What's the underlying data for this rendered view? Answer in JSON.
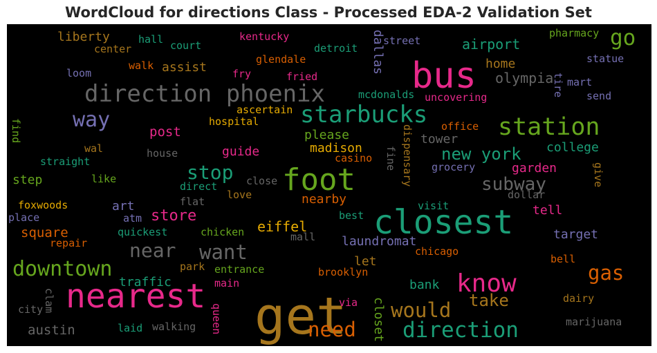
{
  "chart_data": {
    "type": "wordcloud",
    "title": "WordCloud for directions Class - Processed EDA-2 Validation Set",
    "background": "#000000",
    "words": [
      {
        "text": "get",
        "color": "#a6761d"
      },
      {
        "text": "nearest",
        "color": "#e7298a"
      },
      {
        "text": "bus",
        "color": "#e7298a"
      },
      {
        "text": "closest",
        "color": "#1b9e77"
      },
      {
        "text": "foot",
        "color": "#66a61e"
      },
      {
        "text": "direction phoenix",
        "color": "#666666"
      },
      {
        "text": "starbucks",
        "color": "#1b9e77"
      },
      {
        "text": "station",
        "color": "#66a61e"
      },
      {
        "text": "know",
        "color": "#e7298a"
      },
      {
        "text": "downtown",
        "color": "#66a61e"
      },
      {
        "text": "direction",
        "color": "#1b9e77"
      },
      {
        "text": "need",
        "color": "#d95f02"
      },
      {
        "text": "would",
        "color": "#a6761d"
      },
      {
        "text": "want",
        "color": "#666666"
      },
      {
        "text": "near",
        "color": "#666666"
      },
      {
        "text": "way",
        "color": "#7570b3"
      },
      {
        "text": "stop",
        "color": "#1b9e77"
      },
      {
        "text": "go",
        "color": "#66a61e"
      },
      {
        "text": "gas",
        "color": "#d95f02"
      },
      {
        "text": "subway",
        "color": "#666666"
      },
      {
        "text": "new york",
        "color": "#1b9e77"
      },
      {
        "text": "take",
        "color": "#a6761d"
      },
      {
        "text": "store",
        "color": "#e7298a"
      },
      {
        "text": "airport",
        "color": "#1b9e77"
      },
      {
        "text": "olympia",
        "color": "#666666"
      },
      {
        "text": "home",
        "color": "#a6761d"
      },
      {
        "text": "liberty",
        "color": "#a6761d"
      },
      {
        "text": "assist",
        "color": "#a6761d"
      },
      {
        "text": "eiffel",
        "color": "#e6ab02"
      },
      {
        "text": "laundromat",
        "color": "#7570b3"
      },
      {
        "text": "post",
        "color": "#e7298a"
      },
      {
        "text": "guide",
        "color": "#e7298a"
      },
      {
        "text": "madison",
        "color": "#e6ab02"
      },
      {
        "text": "please",
        "color": "#66a61e"
      },
      {
        "text": "tower",
        "color": "#666666"
      },
      {
        "text": "college",
        "color": "#1b9e77"
      },
      {
        "text": "garden",
        "color": "#e7298a"
      },
      {
        "text": "austin",
        "color": "#666666"
      },
      {
        "text": "square",
        "color": "#d95f02"
      },
      {
        "text": "traffic",
        "color": "#1b9e77"
      },
      {
        "text": "bank",
        "color": "#1b9e77"
      },
      {
        "text": "tell",
        "color": "#e7298a"
      },
      {
        "text": "target",
        "color": "#7570b3"
      },
      {
        "text": "nearby",
        "color": "#d95f02"
      },
      {
        "text": "art",
        "color": "#7570b3"
      },
      {
        "text": "let",
        "color": "#a6761d"
      },
      {
        "text": "dallas",
        "color": "#7570b3"
      },
      {
        "text": "closet",
        "color": "#66a61e"
      },
      {
        "text": "step",
        "color": "#66a61e"
      },
      {
        "text": "pharmacy",
        "color": "#66a61e"
      },
      {
        "text": "statue",
        "color": "#7570b3"
      },
      {
        "text": "mart",
        "color": "#7570b3"
      },
      {
        "text": "send",
        "color": "#7570b3"
      },
      {
        "text": "tire",
        "color": "#7570b3"
      },
      {
        "text": "street",
        "color": "#7570b3"
      },
      {
        "text": "detroit",
        "color": "#1b9e77"
      },
      {
        "text": "kentucky",
        "color": "#e7298a"
      },
      {
        "text": "glendale",
        "color": "#d95f02"
      },
      {
        "text": "hall",
        "color": "#1b9e77"
      },
      {
        "text": "court",
        "color": "#1b9e77"
      },
      {
        "text": "center",
        "color": "#a6761d"
      },
      {
        "text": "walk",
        "color": "#d95f02"
      },
      {
        "text": "loom",
        "color": "#7570b3"
      },
      {
        "text": "fry",
        "color": "#e7298a"
      },
      {
        "text": "fried",
        "color": "#e7298a"
      },
      {
        "text": "mcdonalds",
        "color": "#1b9e77"
      },
      {
        "text": "uncovering",
        "color": "#e7298a"
      },
      {
        "text": "ascertain",
        "color": "#e6ab02"
      },
      {
        "text": "hospital",
        "color": "#e6ab02"
      },
      {
        "text": "office",
        "color": "#d95f02"
      },
      {
        "text": "find",
        "color": "#66a61e"
      },
      {
        "text": "wal",
        "color": "#a6761d"
      },
      {
        "text": "house",
        "color": "#666666"
      },
      {
        "text": "straight",
        "color": "#1b9e77"
      },
      {
        "text": "casino",
        "color": "#d95f02"
      },
      {
        "text": "fine",
        "color": "#666666"
      },
      {
        "text": "dispensary",
        "color": "#a6761d"
      },
      {
        "text": "grocery",
        "color": "#7570b3"
      },
      {
        "text": "give",
        "color": "#a6761d"
      },
      {
        "text": "like",
        "color": "#66a61e"
      },
      {
        "text": "direct",
        "color": "#1b9e77"
      },
      {
        "text": "close",
        "color": "#666666"
      },
      {
        "text": "dollar",
        "color": "#666666"
      },
      {
        "text": "love",
        "color": "#a6761d"
      },
      {
        "text": "flat",
        "color": "#666666"
      },
      {
        "text": "foxwoods",
        "color": "#e6ab02"
      },
      {
        "text": "place",
        "color": "#7570b3"
      },
      {
        "text": "atm",
        "color": "#7570b3"
      },
      {
        "text": "visit",
        "color": "#1b9e77"
      },
      {
        "text": "best",
        "color": "#1b9e77"
      },
      {
        "text": "quickest",
        "color": "#1b9e77"
      },
      {
        "text": "chicken",
        "color": "#66a61e"
      },
      {
        "text": "mall",
        "color": "#666666"
      },
      {
        "text": "repair",
        "color": "#d95f02"
      },
      {
        "text": "chicago",
        "color": "#d95f02"
      },
      {
        "text": "bell",
        "color": "#d95f02"
      },
      {
        "text": "park",
        "color": "#a6761d"
      },
      {
        "text": "entrance",
        "color": "#66a61e"
      },
      {
        "text": "brooklyn",
        "color": "#d95f02"
      },
      {
        "text": "main",
        "color": "#e7298a"
      },
      {
        "text": "clam",
        "color": "#666666"
      },
      {
        "text": "city",
        "color": "#666666"
      },
      {
        "text": "queen",
        "color": "#e7298a"
      },
      {
        "text": "via",
        "color": "#e7298a"
      },
      {
        "text": "dairy",
        "color": "#a6761d"
      },
      {
        "text": "laid",
        "color": "#1b9e77"
      },
      {
        "text": "walking",
        "color": "#666666"
      },
      {
        "text": "marijuana",
        "color": "#666666"
      }
    ]
  }
}
